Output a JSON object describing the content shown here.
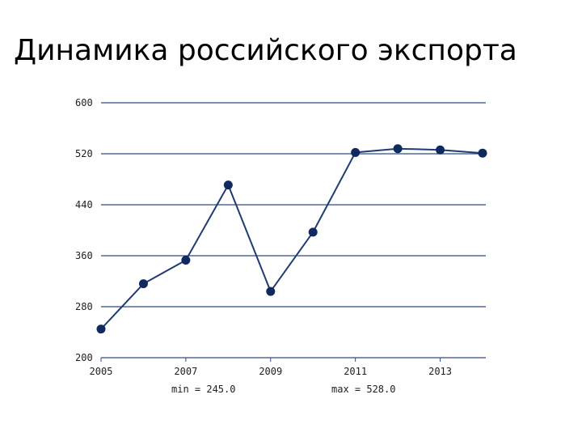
{
  "slide": {
    "title": "Динамика российского экспорта"
  },
  "chart_data": {
    "type": "line",
    "title": "",
    "xlabel": "",
    "ylabel": "",
    "x": [
      2005,
      2006,
      2007,
      2008,
      2009,
      2010,
      2011,
      2012,
      2013,
      2014
    ],
    "series": [
      {
        "values": [
          245,
          316,
          353,
          471,
          304,
          397,
          522,
          528,
          526,
          521
        ]
      }
    ],
    "xlim": [
      2005,
      2014
    ],
    "ylim": [
      200,
      600
    ],
    "y_ticks": [
      "200",
      "280",
      "360",
      "440",
      "520",
      "600"
    ],
    "x_ticks": [
      "2005",
      "2007",
      "2009",
      "2011",
      "2013"
    ],
    "grid": true,
    "legend": "none",
    "summary": {
      "min_label": "min = 245.0",
      "max_label": "max = 528.0"
    },
    "colors": {
      "line": "#1f3b73",
      "marker": "#0f2a5e",
      "grid": "#2e4a88"
    }
  }
}
